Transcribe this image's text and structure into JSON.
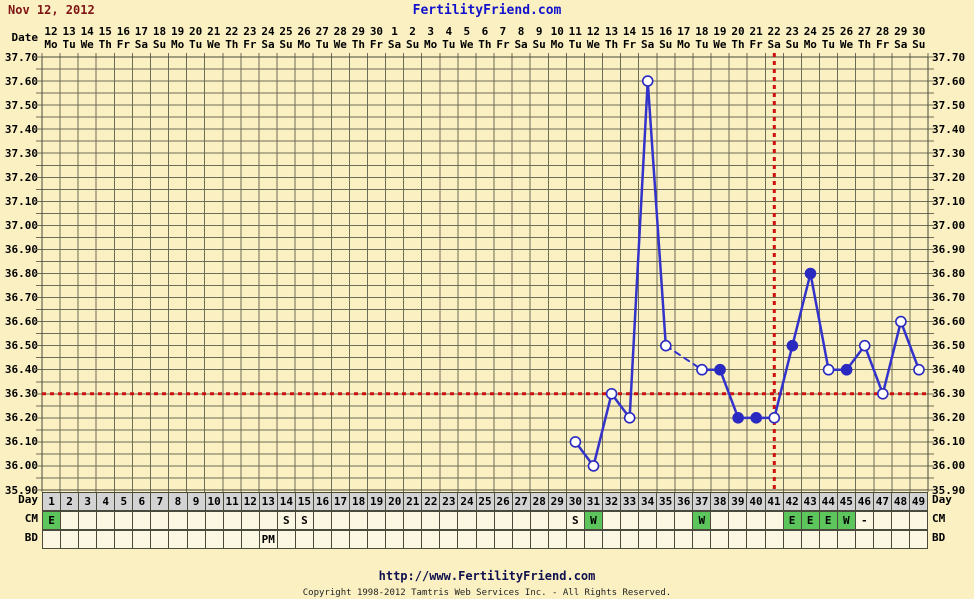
{
  "page": {
    "title_date": "Nov 12, 2012",
    "site_name": "FertilityFriend.com",
    "footer_url": "http://www.FertilityFriend.com",
    "copyright": "Copyright 1998-2012 Tamtris Web Services Inc. - All Rights Reserved."
  },
  "labels": {
    "date": "Date",
    "day": "Day",
    "cm": "CM",
    "bd": "BD"
  },
  "colors": {
    "background": "#FAF0C2",
    "grid": "#6D6D58",
    "border": "#4A4A3C",
    "temp_line": "#3333CC",
    "marker_stroke": "#2A2AC0",
    "marker_open_fill": "#FFFFFF",
    "red_lines": "#CC1111",
    "day_row_bg": "#D3D3D3",
    "cell_bg": "#FCF7E2",
    "cm_green": "#5CC55C",
    "title_red": "#7E1414",
    "site_blue": "#1212CC",
    "footer_navy": "#10104F"
  },
  "chart_data": {
    "type": "line",
    "title": "",
    "ylabel": "",
    "xlabel": "",
    "ylim": [
      35.9,
      37.7
    ],
    "y_step_minor": 0.05,
    "grid": true,
    "y_ticks": [
      "37.70",
      "37.60",
      "37.50",
      "37.40",
      "37.30",
      "37.20",
      "37.10",
      "37.00",
      "36.90",
      "36.80",
      "36.70",
      "36.60",
      "36.50",
      "36.40",
      "36.30",
      "36.20",
      "36.10",
      "36.00",
      "35.90"
    ],
    "x_dates": [
      {
        "date": "12",
        "weekday": "Mo"
      },
      {
        "date": "13",
        "weekday": "Tu"
      },
      {
        "date": "14",
        "weekday": "We"
      },
      {
        "date": "15",
        "weekday": "Th"
      },
      {
        "date": "16",
        "weekday": "Fr"
      },
      {
        "date": "17",
        "weekday": "Sa"
      },
      {
        "date": "18",
        "weekday": "Su"
      },
      {
        "date": "19",
        "weekday": "Mo"
      },
      {
        "date": "20",
        "weekday": "Tu"
      },
      {
        "date": "21",
        "weekday": "We"
      },
      {
        "date": "22",
        "weekday": "Th"
      },
      {
        "date": "23",
        "weekday": "Fr"
      },
      {
        "date": "24",
        "weekday": "Sa"
      },
      {
        "date": "25",
        "weekday": "Su"
      },
      {
        "date": "26",
        "weekday": "Mo"
      },
      {
        "date": "27",
        "weekday": "Tu"
      },
      {
        "date": "28",
        "weekday": "We"
      },
      {
        "date": "29",
        "weekday": "Th"
      },
      {
        "date": "30",
        "weekday": "Fr"
      },
      {
        "date": "1",
        "weekday": "Sa"
      },
      {
        "date": "2",
        "weekday": "Su"
      },
      {
        "date": "3",
        "weekday": "Mo"
      },
      {
        "date": "4",
        "weekday": "Tu"
      },
      {
        "date": "5",
        "weekday": "We"
      },
      {
        "date": "6",
        "weekday": "Th"
      },
      {
        "date": "7",
        "weekday": "Fr"
      },
      {
        "date": "8",
        "weekday": "Sa"
      },
      {
        "date": "9",
        "weekday": "Su"
      },
      {
        "date": "10",
        "weekday": "Mo"
      },
      {
        "date": "11",
        "weekday": "Tu"
      },
      {
        "date": "12",
        "weekday": "We"
      },
      {
        "date": "13",
        "weekday": "Th"
      },
      {
        "date": "14",
        "weekday": "Fr"
      },
      {
        "date": "15",
        "weekday": "Sa"
      },
      {
        "date": "16",
        "weekday": "Su"
      },
      {
        "date": "17",
        "weekday": "Mo"
      },
      {
        "date": "18",
        "weekday": "Tu"
      },
      {
        "date": "19",
        "weekday": "We"
      },
      {
        "date": "20",
        "weekday": "Th"
      },
      {
        "date": "21",
        "weekday": "Fr"
      },
      {
        "date": "22",
        "weekday": "Sa"
      },
      {
        "date": "23",
        "weekday": "Su"
      },
      {
        "date": "24",
        "weekday": "Mo"
      },
      {
        "date": "25",
        "weekday": "Tu"
      },
      {
        "date": "26",
        "weekday": "We"
      },
      {
        "date": "27",
        "weekday": "Th"
      },
      {
        "date": "28",
        "weekday": "Fr"
      },
      {
        "date": "29",
        "weekday": "Sa"
      },
      {
        "date": "30",
        "weekday": "Su"
      }
    ],
    "cycle_days": [
      1,
      2,
      3,
      4,
      5,
      6,
      7,
      8,
      9,
      10,
      11,
      12,
      13,
      14,
      15,
      16,
      17,
      18,
      19,
      20,
      21,
      22,
      23,
      24,
      25,
      26,
      27,
      28,
      29,
      30,
      31,
      32,
      33,
      34,
      35,
      36,
      37,
      38,
      39,
      40,
      41,
      42,
      43,
      44,
      45,
      46,
      47,
      48,
      49
    ],
    "points": [
      {
        "day": 30,
        "temp": 36.1,
        "marker": "open"
      },
      {
        "day": 31,
        "temp": 36.0,
        "marker": "open"
      },
      {
        "day": 32,
        "temp": 36.3,
        "marker": "open"
      },
      {
        "day": 33,
        "temp": 36.2,
        "marker": "open"
      },
      {
        "day": 34,
        "temp": 37.6,
        "marker": "open"
      },
      {
        "day": 35,
        "temp": 36.5,
        "marker": "open"
      },
      {
        "day": 37,
        "temp": 36.4,
        "marker": "open"
      },
      {
        "day": 38,
        "temp": 36.4,
        "marker": "filled"
      },
      {
        "day": 39,
        "temp": 36.2,
        "marker": "filled"
      },
      {
        "day": 40,
        "temp": 36.2,
        "marker": "filled"
      },
      {
        "day": 41,
        "temp": 36.2,
        "marker": "open"
      },
      {
        "day": 42,
        "temp": 36.5,
        "marker": "filled"
      },
      {
        "day": 43,
        "temp": 36.8,
        "marker": "filled"
      },
      {
        "day": 44,
        "temp": 36.4,
        "marker": "open"
      },
      {
        "day": 45,
        "temp": 36.4,
        "marker": "filled"
      },
      {
        "day": 46,
        "temp": 36.5,
        "marker": "open"
      },
      {
        "day": 47,
        "temp": 36.3,
        "marker": "open"
      },
      {
        "day": 48,
        "temp": 36.6,
        "marker": "open"
      },
      {
        "day": 49,
        "temp": 36.4,
        "marker": "open"
      }
    ],
    "coverline_temp": 36.3,
    "ovulation_day": 41,
    "cm_row": [
      {
        "day": 1,
        "value": "E",
        "green": true
      },
      {
        "day": 14,
        "value": "S",
        "green": false
      },
      {
        "day": 15,
        "value": "S",
        "green": false
      },
      {
        "day": 30,
        "value": "S",
        "green": false
      },
      {
        "day": 31,
        "value": "W",
        "green": true
      },
      {
        "day": 37,
        "value": "W",
        "green": true
      },
      {
        "day": 42,
        "value": "E",
        "green": true
      },
      {
        "day": 43,
        "value": "E",
        "green": true
      },
      {
        "day": 44,
        "value": "E",
        "green": true
      },
      {
        "day": 45,
        "value": "W",
        "green": true
      },
      {
        "day": 46,
        "value": "-",
        "green": false
      }
    ],
    "bd_row": [
      {
        "day": 13,
        "value": "PM"
      }
    ]
  }
}
